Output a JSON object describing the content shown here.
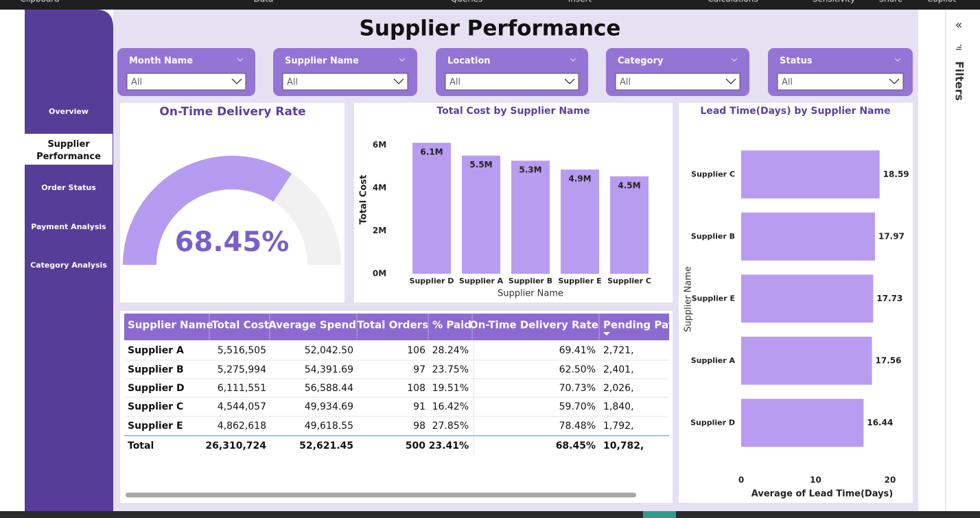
{
  "ribbon": [
    "Clipboard",
    "Data",
    "Queries",
    "Insert",
    "Calculations",
    "Sensitivity",
    "Share",
    "Copilot"
  ],
  "title": "Supplier Performance",
  "nav": {
    "items": [
      "Overview",
      "Supplier Performance",
      "Order Status",
      "Payment Analysis",
      "Category Analysis"
    ],
    "selected": 1
  },
  "filters": [
    {
      "label": "Month Name",
      "value": "All"
    },
    {
      "label": "Supplier Name",
      "value": "All"
    },
    {
      "label": "Location",
      "value": "All"
    },
    {
      "label": "Category",
      "value": "All"
    },
    {
      "label": "Status",
      "value": "All"
    }
  ],
  "filters_pane": {
    "collapse": "«",
    "title": "Filters"
  },
  "chart_data": [
    {
      "type": "gauge",
      "title": "On-Time Delivery Rate",
      "values": [
        68.45
      ],
      "value_labels": [
        "68.45%"
      ],
      "ylim": [
        0,
        100
      ],
      "color": "#b59cf0",
      "track_color": "#f1f1f1"
    },
    {
      "type": "bar",
      "title": "Total Cost by Supplier Name",
      "x_label": "Supplier Name",
      "y_label": "Total Cost",
      "categories": [
        "Supplier D",
        "Supplier A",
        "Supplier B",
        "Supplier E",
        "Supplier C"
      ],
      "values": [
        6111551,
        5516505,
        5275994,
        4862618,
        4544057
      ],
      "value_labels": [
        "6.1M",
        "5.5M",
        "5.3M",
        "4.9M",
        "4.5M"
      ],
      "ylim": [
        0,
        6500000
      ],
      "yticks": [
        {
          "value": 0,
          "label": "0M"
        },
        {
          "value": 2000000,
          "label": "2M"
        },
        {
          "value": 4000000,
          "label": "4M"
        },
        {
          "value": 6000000,
          "label": "6M"
        }
      ],
      "color": "#b89cf0"
    },
    {
      "type": "hbar",
      "title": "Lead Time(Days) by Supplier Name",
      "x_label": "Average of Lead Time(Days)",
      "y_label": "Supplier Name",
      "categories": [
        "Supplier C",
        "Supplier B",
        "Supplier E",
        "Supplier A",
        "Supplier D"
      ],
      "values": [
        18.59,
        17.97,
        17.73,
        17.56,
        16.44
      ],
      "xlim": [
        0,
        20
      ],
      "xticks": [
        0,
        10,
        20
      ],
      "color": "#b89cf0"
    }
  ],
  "table": {
    "columns": [
      "Supplier Name",
      "Total Cost",
      "Average Spend",
      "Total Orders",
      "% Paid",
      "On-Time Delivery Rate",
      "Pending Pay"
    ],
    "rows": [
      [
        "Supplier A",
        "5,516,505",
        "52,042.50",
        "106",
        "28.24%",
        "69.41%",
        "2,721,"
      ],
      [
        "Supplier B",
        "5,275,994",
        "54,391.69",
        "97",
        "23.75%",
        "62.50%",
        "2,401,"
      ],
      [
        "Supplier D",
        "6,111,551",
        "56,588.44",
        "108",
        "19.51%",
        "70.73%",
        "2,026,"
      ],
      [
        "Supplier C",
        "4,544,057",
        "49,934.69",
        "91",
        "16.42%",
        "59.70%",
        "1,840,"
      ],
      [
        "Supplier E",
        "4,862,618",
        "49,618.55",
        "98",
        "27.85%",
        "78.48%",
        "1,792,"
      ]
    ],
    "total": [
      "Total",
      "26,310,724",
      "52,621.45",
      "500",
      "23.41%",
      "68.45%",
      "10,782,"
    ]
  }
}
